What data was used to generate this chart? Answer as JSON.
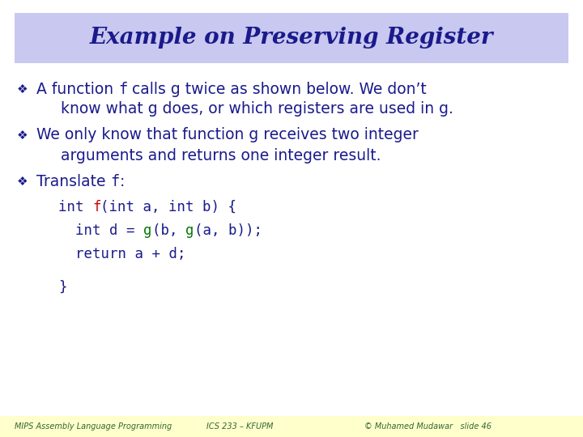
{
  "title": "Example on Preserving Register",
  "title_color": "#1a1a8c",
  "title_bg_color": "#c8c8f0",
  "bg_color": "#ffffff",
  "footer_bg_color": "#ffffcc",
  "footer_texts": [
    "MIPS Assembly Language Programming",
    "ICS 233 – KFUPM",
    "© Muhamed Mudawar   slide 46"
  ],
  "footer_color": "#336633",
  "bullet_color": "#1a1a8c",
  "text_color": "#1a1a8c",
  "title_fontsize": 20,
  "body_fontsize": 13.5,
  "code_fontsize": 12.5,
  "footer_fontsize": 7
}
